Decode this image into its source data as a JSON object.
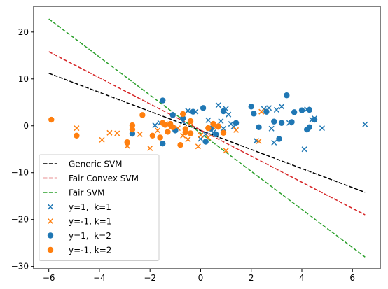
{
  "chart_data": {
    "type": "scatter",
    "title": "",
    "xlabel": "",
    "ylabel": "",
    "xlim": [
      -6.6,
      7.1
    ],
    "ylim": [
      -30.5,
      25.5
    ],
    "xticks": [
      -6,
      -4,
      -2,
      0,
      2,
      4,
      6
    ],
    "yticks": [
      -30,
      -20,
      -10,
      0,
      10,
      20
    ],
    "grid": false,
    "legend_position": "lower-left",
    "lines": [
      {
        "name": "Generic SVM",
        "color": "#000000",
        "style": "dashed",
        "x": [
          -6,
          6.5
        ],
        "y": [
          11.2,
          -14.2
        ]
      },
      {
        "name": "Fair Convex SVM",
        "color": "#d62728",
        "style": "dashed",
        "x": [
          -6,
          6.5
        ],
        "y": [
          15.8,
          -19.0
        ]
      },
      {
        "name": "Fair SVM",
        "color": "#2ca02c",
        "style": "dashed",
        "x": [
          -6,
          6.5
        ],
        "y": [
          22.8,
          -28.0
        ]
      }
    ],
    "series": [
      {
        "name": "y=1,  k=1",
        "marker": "x",
        "color": "#1f77b4",
        "points": [
          [
            -1.8,
            0.1
          ],
          [
            -1.6,
            0.6
          ],
          [
            -0.5,
            3.2
          ],
          [
            -0.2,
            3.0
          ],
          [
            0.3,
            1.2
          ],
          [
            0.5,
            -1.4
          ],
          [
            0.7,
            4.4
          ],
          [
            0.8,
            1.0
          ],
          [
            1.0,
            3.6
          ],
          [
            1.1,
            2.4
          ],
          [
            1.2,
            0.4
          ],
          [
            1.3,
            -0.2
          ],
          [
            0.2,
            -1.8
          ],
          [
            0.9,
            -0.6
          ],
          [
            2.2,
            -3.2
          ],
          [
            2.5,
            3.6
          ],
          [
            2.7,
            3.8
          ],
          [
            2.8,
            -0.6
          ],
          [
            3.0,
            3.4
          ],
          [
            3.2,
            4.1
          ],
          [
            3.5,
            0.6
          ],
          [
            4.1,
            -5.0
          ],
          [
            4.2,
            3.5
          ],
          [
            4.5,
            1.6
          ],
          [
            4.8,
            -0.5
          ],
          [
            6.5,
            0.3
          ],
          [
            2.9,
            -3.6
          ],
          [
            4.4,
            1.3
          ],
          [
            -0.7,
            0.9
          ],
          [
            0.0,
            -2.8
          ]
        ]
      },
      {
        "name": "y=-1, k=1",
        "marker": "x",
        "color": "#ff7f0e",
        "points": [
          [
            -4.9,
            -0.5
          ],
          [
            -3.9,
            -3.0
          ],
          [
            -3.6,
            -1.5
          ],
          [
            -3.3,
            -1.6
          ],
          [
            -2.9,
            -4.3
          ],
          [
            -2.4,
            -1.8
          ],
          [
            -2.0,
            -4.8
          ],
          [
            -1.7,
            -1.0
          ],
          [
            -1.2,
            -0.4
          ],
          [
            -0.9,
            -0.5
          ],
          [
            -0.7,
            -2.1
          ],
          [
            -0.5,
            -2.9
          ],
          [
            -0.1,
            -4.4
          ],
          [
            0.0,
            -2.0
          ],
          [
            0.3,
            -2.5
          ],
          [
            0.6,
            -0.3
          ],
          [
            1.0,
            -5.3
          ],
          [
            1.4,
            -0.9
          ],
          [
            2.4,
            3.0
          ],
          [
            2.3,
            -3.3
          ],
          [
            -0.4,
            0.7
          ],
          [
            -1.4,
            0.4
          ]
        ]
      },
      {
        "name": "y=1,  k=2",
        "marker": "o",
        "color": "#1f77b4",
        "points": [
          [
            -2.7,
            -1.7
          ],
          [
            -1.5,
            5.4
          ],
          [
            -1.5,
            -3.8
          ],
          [
            -1.1,
            2.3
          ],
          [
            -0.7,
            1.6
          ],
          [
            -0.3,
            3.0
          ],
          [
            0.1,
            3.8
          ],
          [
            0.2,
            -3.4
          ],
          [
            0.4,
            -0.6
          ],
          [
            0.9,
            3.1
          ],
          [
            1.4,
            0.6
          ],
          [
            2.0,
            4.1
          ],
          [
            2.1,
            2.6
          ],
          [
            2.3,
            -0.3
          ],
          [
            2.6,
            3.0
          ],
          [
            2.9,
            0.9
          ],
          [
            3.1,
            -2.8
          ],
          [
            3.2,
            0.6
          ],
          [
            3.4,
            6.5
          ],
          [
            3.6,
            0.8
          ],
          [
            3.7,
            2.9
          ],
          [
            4.0,
            3.3
          ],
          [
            4.2,
            -0.8
          ],
          [
            4.3,
            3.4
          ],
          [
            4.5,
            1.3
          ],
          [
            4.3,
            -0.3
          ],
          [
            -1.0,
            -1.0
          ],
          [
            0.6,
            -1.8
          ]
        ]
      },
      {
        "name": "y=-1, k=2",
        "marker": "o",
        "color": "#ff7f0e",
        "points": [
          [
            -5.9,
            1.3
          ],
          [
            -4.9,
            -2.1
          ],
          [
            -2.9,
            -3.5
          ],
          [
            -2.7,
            0.1
          ],
          [
            -2.7,
            -0.8
          ],
          [
            -2.3,
            2.3
          ],
          [
            -1.9,
            -2.1
          ],
          [
            -1.6,
            -2.5
          ],
          [
            -1.5,
            0.6
          ],
          [
            -1.4,
            0.2
          ],
          [
            -1.3,
            -1.3
          ],
          [
            -1.2,
            0.4
          ],
          [
            -1.1,
            -0.3
          ],
          [
            -0.8,
            -4.1
          ],
          [
            -0.7,
            2.5
          ],
          [
            -0.6,
            -1.4
          ],
          [
            -0.4,
            1.0
          ],
          [
            -0.4,
            -1.6
          ],
          [
            0.3,
            -0.5
          ],
          [
            0.5,
            0.4
          ],
          [
            0.7,
            -0.1
          ],
          [
            0.9,
            -1.5
          ],
          [
            -0.6,
            -0.7
          ]
        ]
      }
    ]
  }
}
